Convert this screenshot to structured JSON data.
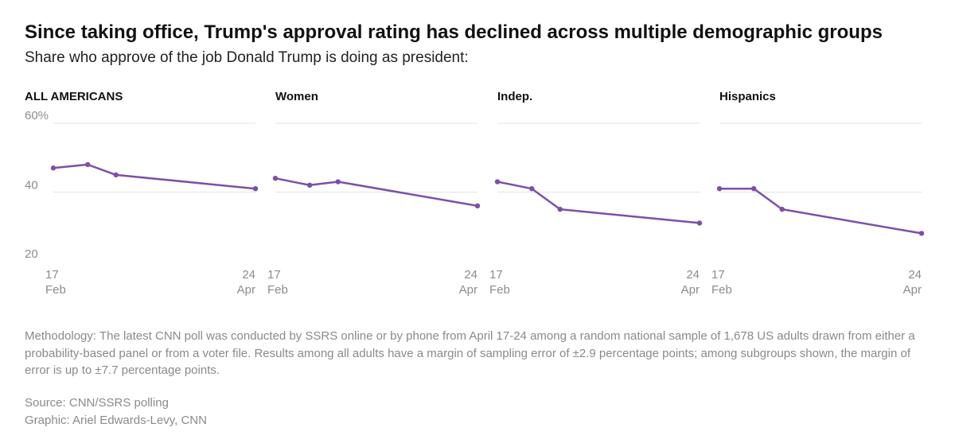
{
  "title": "Since taking office, Trump's approval rating has declined across multiple demographic groups",
  "subtitle": "Share who approve of the job Donald Trump is doing as president:",
  "colors": {
    "line": "#7d4fa8",
    "grid": "#e3e3e3",
    "axis_text": "#8c8c8c"
  },
  "chart_data": [
    {
      "type": "line",
      "title": "ALL AMERICANS",
      "ylim": [
        20,
        60
      ],
      "yticks": [
        60,
        40,
        20
      ],
      "ytick_labels": [
        "60%",
        "40",
        "20"
      ],
      "x_start": {
        "day": "17",
        "month": "Feb"
      },
      "x_end": {
        "day": "24",
        "month": "Apr"
      },
      "x": [
        0,
        0.17,
        0.31,
        1
      ],
      "values": [
        47,
        48,
        45,
        41
      ]
    },
    {
      "type": "line",
      "title": "Women",
      "ylim": [
        20,
        60
      ],
      "yticks": [
        60,
        40,
        20
      ],
      "ytick_labels": [
        "",
        "",
        ""
      ],
      "x_start": {
        "day": "17",
        "month": "Feb"
      },
      "x_end": {
        "day": "24",
        "month": "Apr"
      },
      "x": [
        0,
        0.17,
        0.31,
        1
      ],
      "values": [
        44,
        42,
        43,
        36
      ]
    },
    {
      "type": "line",
      "title": "Indep.",
      "ylim": [
        20,
        60
      ],
      "yticks": [
        60,
        40,
        20
      ],
      "ytick_labels": [
        "",
        "",
        ""
      ],
      "x_start": {
        "day": "17",
        "month": "Feb"
      },
      "x_end": {
        "day": "24",
        "month": "Apr"
      },
      "x": [
        0,
        0.17,
        0.31,
        1
      ],
      "values": [
        43,
        41,
        35,
        31
      ]
    },
    {
      "type": "line",
      "title": "Hispanics",
      "ylim": [
        20,
        60
      ],
      "yticks": [
        60,
        40,
        20
      ],
      "ytick_labels": [
        "",
        "",
        ""
      ],
      "x_start": {
        "day": "17",
        "month": "Feb"
      },
      "x_end": {
        "day": "24",
        "month": "Apr"
      },
      "x": [
        0,
        0.17,
        0.31,
        1
      ],
      "values": [
        41,
        41,
        35,
        28
      ]
    }
  ],
  "methodology": "Methodology: The latest CNN poll was conducted by SSRS online or by phone from April 17-24 among a random national sample of 1,678 US adults drawn from either a probability-based panel or from a voter file. Results among all adults have a margin of sampling error of ±2.9 percentage points; among subgroups shown, the margin of error is up to ±7.7 percentage points.",
  "source": "Source: CNN/SSRS polling",
  "graphic": "Graphic: Ariel Edwards-Levy, CNN"
}
